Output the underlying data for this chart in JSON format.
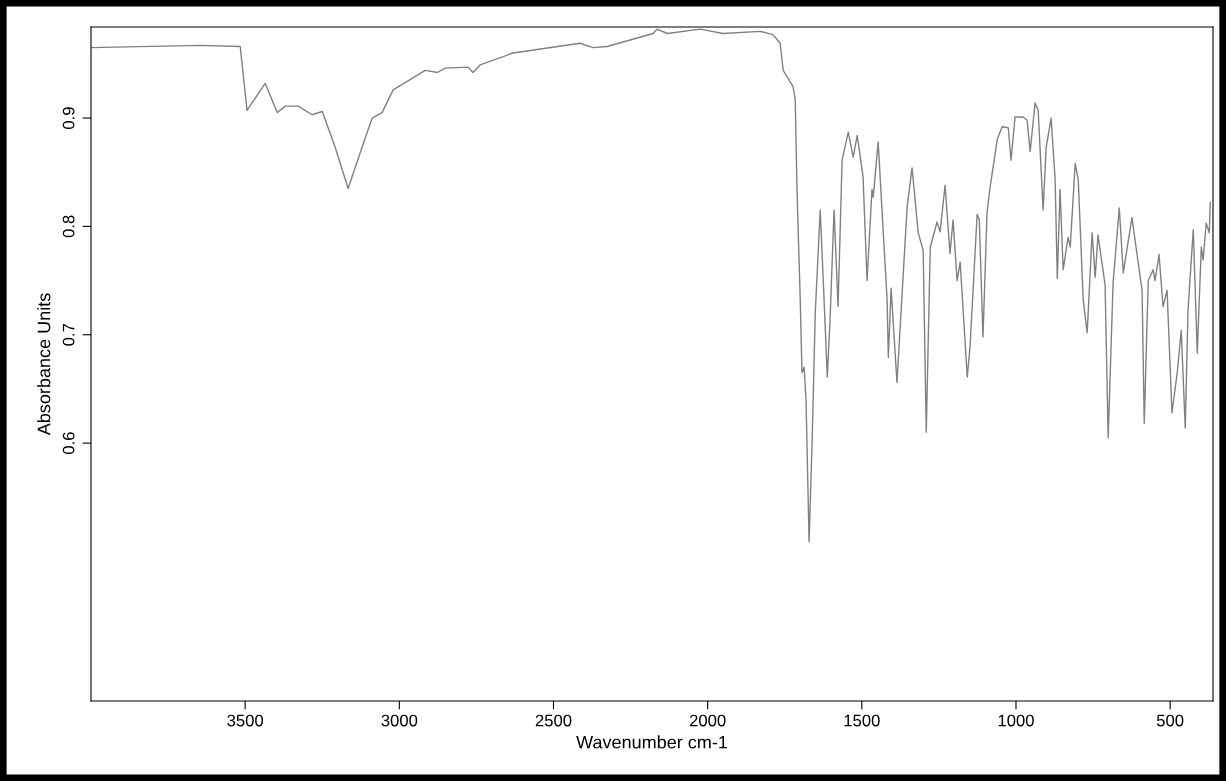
{
  "chart_data": {
    "type": "line",
    "xlabel": "Wavenumber cm-1",
    "ylabel": "Absorbance Units",
    "xlim": [
      4000,
      361
    ],
    "ylim": [
      0.362,
      0.984
    ],
    "xticks": [
      3500,
      3000,
      2500,
      2000,
      1500,
      1000,
      500
    ],
    "yticks": [
      0.6,
      0.7,
      0.8,
      0.9
    ],
    "grid": false,
    "legend": false,
    "marker": "none",
    "line_style": "solid",
    "series": [
      {
        "color": "#808080",
        "x": [
          3999,
          3646,
          3516,
          3494,
          3435,
          3396,
          3370,
          3328,
          3283,
          3250,
          3208,
          3166,
          3127,
          3088,
          3056,
          3020,
          2916,
          2877,
          2851,
          2777,
          2761,
          2738,
          2631,
          2414,
          2371,
          2326,
          2177,
          2164,
          2131,
          2024,
          1950,
          1830,
          1788,
          1765,
          1755,
          1723,
          1716,
          1710,
          1700,
          1694,
          1687,
          1681,
          1671,
          1661,
          1651,
          1635,
          1625,
          1612,
          1603,
          1590,
          1577,
          1564,
          1544,
          1528,
          1515,
          1496,
          1483,
          1467,
          1463,
          1447,
          1418,
          1414,
          1405,
          1386,
          1353,
          1337,
          1317,
          1301,
          1291,
          1278,
          1256,
          1246,
          1230,
          1214,
          1204,
          1191,
          1181,
          1158,
          1149,
          1126,
          1119,
          1107,
          1094,
          1084,
          1061,
          1045,
          1025,
          1016,
          1003,
          977,
          964,
          954,
          938,
          928,
          912,
          902,
          886,
          873,
          866,
          857,
          847,
          831,
          824,
          808,
          798,
          782,
          769,
          753,
          743,
          734,
          711,
          701,
          685,
          665,
          652,
          624,
          591,
          584,
          571,
          555,
          549,
          536,
          523,
          510,
          494,
          477,
          464,
          451,
          442,
          425,
          412,
          399,
          393,
          383,
          373,
          370
        ],
        "values": [
          0.965,
          0.967,
          0.966,
          0.907,
          0.932,
          0.905,
          0.911,
          0.911,
          0.903,
          0.906,
          0.873,
          0.835,
          0.868,
          0.9,
          0.905,
          0.926,
          0.944,
          0.942,
          0.946,
          0.947,
          0.942,
          0.949,
          0.96,
          0.969,
          0.965,
          0.966,
          0.978,
          0.982,
          0.978,
          0.982,
          0.978,
          0.98,
          0.977,
          0.969,
          0.944,
          0.929,
          0.917,
          0.831,
          0.735,
          0.665,
          0.67,
          0.64,
          0.509,
          0.603,
          0.72,
          0.815,
          0.75,
          0.661,
          0.714,
          0.815,
          0.726,
          0.861,
          0.887,
          0.864,
          0.884,
          0.846,
          0.75,
          0.834,
          0.827,
          0.878,
          0.732,
          0.679,
          0.743,
          0.656,
          0.818,
          0.854,
          0.794,
          0.778,
          0.61,
          0.781,
          0.804,
          0.795,
          0.838,
          0.775,
          0.806,
          0.75,
          0.767,
          0.661,
          0.689,
          0.811,
          0.806,
          0.698,
          0.812,
          0.836,
          0.88,
          0.892,
          0.891,
          0.861,
          0.901,
          0.901,
          0.898,
          0.869,
          0.914,
          0.907,
          0.815,
          0.873,
          0.9,
          0.843,
          0.752,
          0.834,
          0.76,
          0.79,
          0.781,
          0.858,
          0.843,
          0.732,
          0.702,
          0.794,
          0.753,
          0.792,
          0.746,
          0.605,
          0.748,
          0.817,
          0.757,
          0.808,
          0.741,
          0.618,
          0.75,
          0.76,
          0.75,
          0.774,
          0.726,
          0.741,
          0.628,
          0.665,
          0.704,
          0.614,
          0.723,
          0.797,
          0.683,
          0.781,
          0.769,
          0.803,
          0.794,
          0.822
        ]
      }
    ]
  }
}
